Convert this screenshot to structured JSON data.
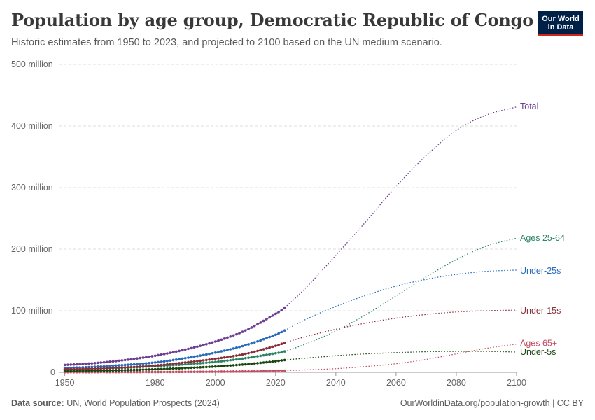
{
  "header": {
    "title": "Population by age group, Democratic Republic of Congo",
    "subtitle": "Historic estimates from 1950 to 2023, and projected to 2100 based on the UN medium scenario."
  },
  "logo": {
    "line1": "Our World",
    "line2": "in Data",
    "bg": "#002147",
    "accent": "#ce261e"
  },
  "footer": {
    "source_label": "Data source:",
    "source_text": "UN, World Population Prospects (2024)",
    "right_text": "OurWorldinData.org/population-growth | CC BY"
  },
  "chart_data": {
    "type": "line",
    "title": "Population by age group, Democratic Republic of Congo",
    "xlabel": "",
    "ylabel": "",
    "xlim": [
      1948,
      2100
    ],
    "ylim": [
      0,
      500000000
    ],
    "historic_end": 2023,
    "x_ticks": [
      1950,
      1980,
      2000,
      2020,
      2040,
      2060,
      2080,
      2100
    ],
    "y_ticks": [
      {
        "value": 0,
        "label": "0"
      },
      {
        "value": 100000000,
        "label": "100 million"
      },
      {
        "value": 200000000,
        "label": "200 million"
      },
      {
        "value": 300000000,
        "label": "300 million"
      },
      {
        "value": 400000000,
        "label": "400 million"
      },
      {
        "value": 500000000,
        "label": "500 million"
      }
    ],
    "grid": true,
    "series": [
      {
        "name": "Total",
        "color": "#6d3e91",
        "label_value": 432000000,
        "points": [
          [
            1950,
            12000000
          ],
          [
            1960,
            15000000
          ],
          [
            1970,
            20000000
          ],
          [
            1980,
            27000000
          ],
          [
            1990,
            37000000
          ],
          [
            2000,
            50000000
          ],
          [
            2010,
            68000000
          ],
          [
            2020,
            95000000
          ],
          [
            2023,
            105000000
          ],
          [
            2030,
            137000000
          ],
          [
            2040,
            190000000
          ],
          [
            2050,
            245000000
          ],
          [
            2060,
            302000000
          ],
          [
            2070,
            352000000
          ],
          [
            2080,
            393000000
          ],
          [
            2090,
            418000000
          ],
          [
            2100,
            431000000
          ]
        ]
      },
      {
        "name": "Ages 25-64",
        "color": "#2c8465",
        "label_value": 218000000,
        "points": [
          [
            1950,
            5000000
          ],
          [
            1960,
            6000000
          ],
          [
            1970,
            7500000
          ],
          [
            1980,
            10000000
          ],
          [
            1990,
            13000000
          ],
          [
            2000,
            17000000
          ],
          [
            2010,
            23000000
          ],
          [
            2020,
            31000000
          ],
          [
            2023,
            34000000
          ],
          [
            2030,
            46000000
          ],
          [
            2040,
            67000000
          ],
          [
            2050,
            94000000
          ],
          [
            2060,
            124000000
          ],
          [
            2070,
            155000000
          ],
          [
            2080,
            183000000
          ],
          [
            2090,
            205000000
          ],
          [
            2100,
            218000000
          ]
        ]
      },
      {
        "name": "Under-25s",
        "color": "#286bbb",
        "label_value": 165000000,
        "points": [
          [
            1950,
            7000000
          ],
          [
            1960,
            9000000
          ],
          [
            1970,
            12000000
          ],
          [
            1980,
            16000000
          ],
          [
            1990,
            23000000
          ],
          [
            2000,
            32000000
          ],
          [
            2010,
            44000000
          ],
          [
            2020,
            61000000
          ],
          [
            2023,
            68000000
          ],
          [
            2030,
            86000000
          ],
          [
            2040,
            107000000
          ],
          [
            2050,
            125000000
          ],
          [
            2060,
            140000000
          ],
          [
            2070,
            151000000
          ],
          [
            2080,
            159000000
          ],
          [
            2090,
            164000000
          ],
          [
            2100,
            166000000
          ]
        ]
      },
      {
        "name": "Under-15s",
        "color": "#883039",
        "label_value": 100000000,
        "points": [
          [
            1950,
            5000000
          ],
          [
            1960,
            6000000
          ],
          [
            1970,
            8000000
          ],
          [
            1980,
            11000000
          ],
          [
            1990,
            16000000
          ],
          [
            2000,
            22000000
          ],
          [
            2010,
            30000000
          ],
          [
            2020,
            43000000
          ],
          [
            2023,
            48000000
          ],
          [
            2030,
            58000000
          ],
          [
            2040,
            70000000
          ],
          [
            2050,
            80000000
          ],
          [
            2060,
            88000000
          ],
          [
            2070,
            94000000
          ],
          [
            2080,
            98000000
          ],
          [
            2090,
            100000000
          ],
          [
            2100,
            101000000
          ]
        ]
      },
      {
        "name": "Ages 65+",
        "color": "#c15065",
        "label_value": 47000000,
        "points": [
          [
            1950,
            300000
          ],
          [
            1960,
            350000
          ],
          [
            1970,
            450000
          ],
          [
            1980,
            600000
          ],
          [
            1990,
            800000
          ],
          [
            2000,
            1100000
          ],
          [
            2010,
            1500000
          ],
          [
            2020,
            2500000
          ],
          [
            2023,
            2800000
          ],
          [
            2030,
            4000000
          ],
          [
            2040,
            6000000
          ],
          [
            2050,
            9500000
          ],
          [
            2060,
            14000000
          ],
          [
            2070,
            21000000
          ],
          [
            2080,
            30000000
          ],
          [
            2090,
            39000000
          ],
          [
            2100,
            46000000
          ]
        ]
      },
      {
        "name": "Under-5s",
        "color": "#18470f",
        "label_value": 33000000,
        "points": [
          [
            1950,
            2000000
          ],
          [
            1960,
            2500000
          ],
          [
            1970,
            3500000
          ],
          [
            1980,
            5000000
          ],
          [
            1990,
            7000000
          ],
          [
            2000,
            9500000
          ],
          [
            2010,
            13000000
          ],
          [
            2020,
            18000000
          ],
          [
            2023,
            20000000
          ],
          [
            2030,
            23000000
          ],
          [
            2040,
            27000000
          ],
          [
            2050,
            30000000
          ],
          [
            2060,
            32000000
          ],
          [
            2070,
            33500000
          ],
          [
            2080,
            34000000
          ],
          [
            2090,
            34000000
          ],
          [
            2100,
            33000000
          ]
        ]
      }
    ]
  }
}
